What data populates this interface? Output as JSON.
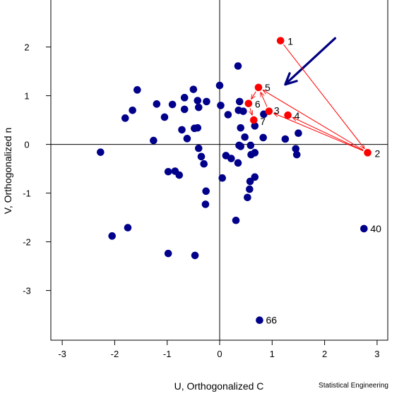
{
  "chart_data": {
    "type": "scatter",
    "xlabel": "U, Orthogonalized C",
    "ylabel": "V, Orthogonalized n",
    "xlim": [
      -3.3,
      3.2
    ],
    "ylim": [
      -3.9,
      2.9
    ],
    "x_ticks": [
      -3,
      -2,
      -1,
      0,
      1,
      2,
      3
    ],
    "y_ticks": [
      -3,
      -2,
      -1,
      0,
      1,
      2
    ],
    "reference_lines": {
      "x": 0,
      "y": 0
    },
    "grid": false,
    "colors": {
      "points": "#00008b",
      "highlight": "#ff0000",
      "path": "#ff0000",
      "arrow": "#000080"
    },
    "series": [
      {
        "values_xy": [
          [
            -2.27,
            -0.16
          ],
          [
            -2.05,
            -1.88
          ],
          [
            -1.75,
            -1.71
          ],
          [
            -1.8,
            0.54
          ],
          [
            -1.66,
            0.7
          ],
          [
            -1.57,
            1.12
          ],
          [
            -1.26,
            0.08
          ],
          [
            -1.2,
            0.83
          ],
          [
            -1.05,
            0.56
          ],
          [
            -0.98,
            -0.56
          ],
          [
            -0.98,
            -2.24
          ],
          [
            -0.9,
            0.82
          ],
          [
            -0.85,
            -0.55
          ],
          [
            -0.77,
            -0.63
          ],
          [
            -0.72,
            0.3
          ],
          [
            -0.67,
            0.96
          ],
          [
            -0.67,
            0.72
          ],
          [
            -0.62,
            0.12
          ],
          [
            -0.5,
            1.13
          ],
          [
            -0.48,
            0.33
          ],
          [
            -0.47,
            -2.28
          ],
          [
            -0.42,
            0.34
          ],
          [
            -0.42,
            0.9
          ],
          [
            -0.4,
            0.76
          ],
          [
            -0.4,
            -0.08
          ],
          [
            -0.35,
            -0.25
          ],
          [
            -0.3,
            -0.4
          ],
          [
            -0.26,
            -0.96
          ],
          [
            -0.27,
            -1.23
          ],
          [
            -0.25,
            0.88
          ],
          [
            0.0,
            1.21
          ],
          [
            0.02,
            0.8
          ],
          [
            0.05,
            -0.69
          ],
          [
            0.12,
            -0.23
          ],
          [
            0.16,
            0.61
          ],
          [
            0.22,
            -0.29
          ],
          [
            0.31,
            -1.56
          ],
          [
            0.35,
            -0.38
          ],
          [
            0.35,
            1.61
          ],
          [
            0.36,
            0.7
          ],
          [
            0.37,
            -0.02
          ],
          [
            0.4,
            -0.04
          ],
          [
            0.38,
            0.88
          ],
          [
            0.4,
            0.34
          ],
          [
            0.45,
            0.68
          ],
          [
            0.48,
            0.15
          ],
          [
            0.53,
            -1.09
          ],
          [
            0.57,
            -0.92
          ],
          [
            0.58,
            -0.76
          ],
          [
            0.59,
            -0.02
          ],
          [
            0.6,
            -0.21
          ],
          [
            0.67,
            -0.67
          ],
          [
            0.67,
            -0.17
          ],
          [
            0.67,
            0.38
          ],
          [
            0.83,
            0.14
          ],
          [
            0.84,
            0.62
          ],
          [
            1.25,
            0.11
          ],
          [
            1.45,
            -0.09
          ],
          [
            1.47,
            -0.21
          ],
          [
            1.5,
            0.23
          ]
        ]
      },
      {
        "labeled_points": [
          {
            "label": "40",
            "x": 2.75,
            "y": -1.73
          },
          {
            "label": "66",
            "x": 0.76,
            "y": -3.61
          }
        ]
      },
      {
        "highlighted_path": [
          {
            "label": "1",
            "x": 1.16,
            "y": 2.13
          },
          {
            "label": "2",
            "x": 2.82,
            "y": -0.17
          },
          {
            "label": "3",
            "x": 0.94,
            "y": 0.68
          },
          {
            "label": "4",
            "x": 1.3,
            "y": 0.6
          },
          {
            "label": "5",
            "x": 0.74,
            "y": 1.17
          },
          {
            "label": "6",
            "x": 0.55,
            "y": 0.84
          },
          {
            "label": "7",
            "x": 0.65,
            "y": 0.5
          }
        ],
        "path_order": [
          "1",
          "2",
          "3",
          "5",
          "6",
          "7"
        ],
        "extra_segments": [
          [
            "2",
            "5"
          ],
          [
            "2",
            "4"
          ]
        ]
      }
    ],
    "annotation_arrow": {
      "from": [
        2.2,
        2.18
      ],
      "to": [
        1.25,
        1.23
      ]
    },
    "credit": "Statistical Engineering"
  }
}
